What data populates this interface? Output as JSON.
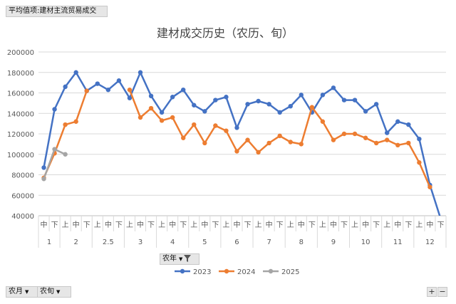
{
  "field_buttons": {
    "value_field": "平均值项:建材主流贸易成交",
    "legend_field": "农年",
    "row_field_1": "农月",
    "row_field_2": "农旬"
  },
  "zoom": {
    "plus": "+",
    "minus": "−"
  },
  "colors": {
    "2023": "#4472C4",
    "2024": "#ED7D31",
    "2025": "#A5A5A5"
  },
  "chart_data": {
    "type": "line",
    "title": "建材成交历史（农历、旬）",
    "ylim": [
      40000,
      200000
    ],
    "yticks": [
      40000,
      60000,
      80000,
      100000,
      120000,
      140000,
      160000,
      180000,
      200000
    ],
    "ytick_labels": [
      "40000",
      "60000",
      "80000",
      "100000",
      "120000",
      "140000",
      "160000",
      "180000",
      "200000"
    ],
    "x_dekads": [
      "中",
      "下",
      "上",
      "中",
      "下",
      "上",
      "中",
      "下",
      "上",
      "中",
      "下",
      "上",
      "中",
      "下",
      "上",
      "中",
      "下",
      "上",
      "中",
      "下",
      "上",
      "中",
      "下",
      "上",
      "中",
      "下",
      "上",
      "中",
      "下",
      "上",
      "中",
      "下",
      "上",
      "中",
      "下",
      "上",
      "中",
      "下"
    ],
    "x_months": [
      {
        "label": "1",
        "start": 0,
        "count": 2
      },
      {
        "label": "2",
        "start": 2,
        "count": 3
      },
      {
        "label": "2.5",
        "start": 5,
        "count": 3
      },
      {
        "label": "3",
        "start": 8,
        "count": 3
      },
      {
        "label": "4",
        "start": 11,
        "count": 3
      },
      {
        "label": "5",
        "start": 14,
        "count": 3
      },
      {
        "label": "6",
        "start": 17,
        "count": 3
      },
      {
        "label": "7",
        "start": 20,
        "count": 3
      },
      {
        "label": "8",
        "start": 23,
        "count": 3
      },
      {
        "label": "9",
        "start": 26,
        "count": 3
      },
      {
        "label": "10",
        "start": 29,
        "count": 3
      },
      {
        "label": "11",
        "start": 32,
        "count": 3
      },
      {
        "label": "12",
        "start": 35,
        "count": 3
      }
    ],
    "legend_position": "bottom",
    "series": [
      {
        "name": "2023",
        "values": [
          87000,
          144000,
          166000,
          180000,
          162000,
          169000,
          163000,
          172000,
          155000,
          180000,
          157000,
          141000,
          156000,
          163000,
          148000,
          142000,
          153000,
          156000,
          126000,
          149000,
          152000,
          149000,
          141000,
          147000,
          158000,
          141000,
          158000,
          165000,
          153000,
          153000,
          142000,
          149000,
          121000,
          132000,
          129000,
          115000,
          70000,
          37000
        ]
      },
      {
        "name": "2024",
        "values": [
          77000,
          101000,
          129000,
          132000,
          162000,
          null,
          null,
          null,
          163000,
          136000,
          145000,
          133000,
          136000,
          116000,
          129000,
          111000,
          128000,
          123000,
          103000,
          114000,
          102000,
          111000,
          118000,
          112000,
          110000,
          146000,
          132000,
          114000,
          120000,
          120000,
          116000,
          111000,
          114000,
          109000,
          111000,
          92000,
          68000,
          null
        ]
      },
      {
        "name": "2025",
        "values": [
          76000,
          105000,
          100000,
          null,
          null,
          null,
          null,
          null,
          null,
          null,
          null,
          null,
          null,
          null,
          null,
          null,
          null,
          null,
          null,
          null,
          null,
          null,
          null,
          null,
          null,
          null,
          null,
          null,
          null,
          null,
          null,
          null,
          null,
          null,
          null,
          null,
          null,
          null
        ]
      }
    ]
  }
}
